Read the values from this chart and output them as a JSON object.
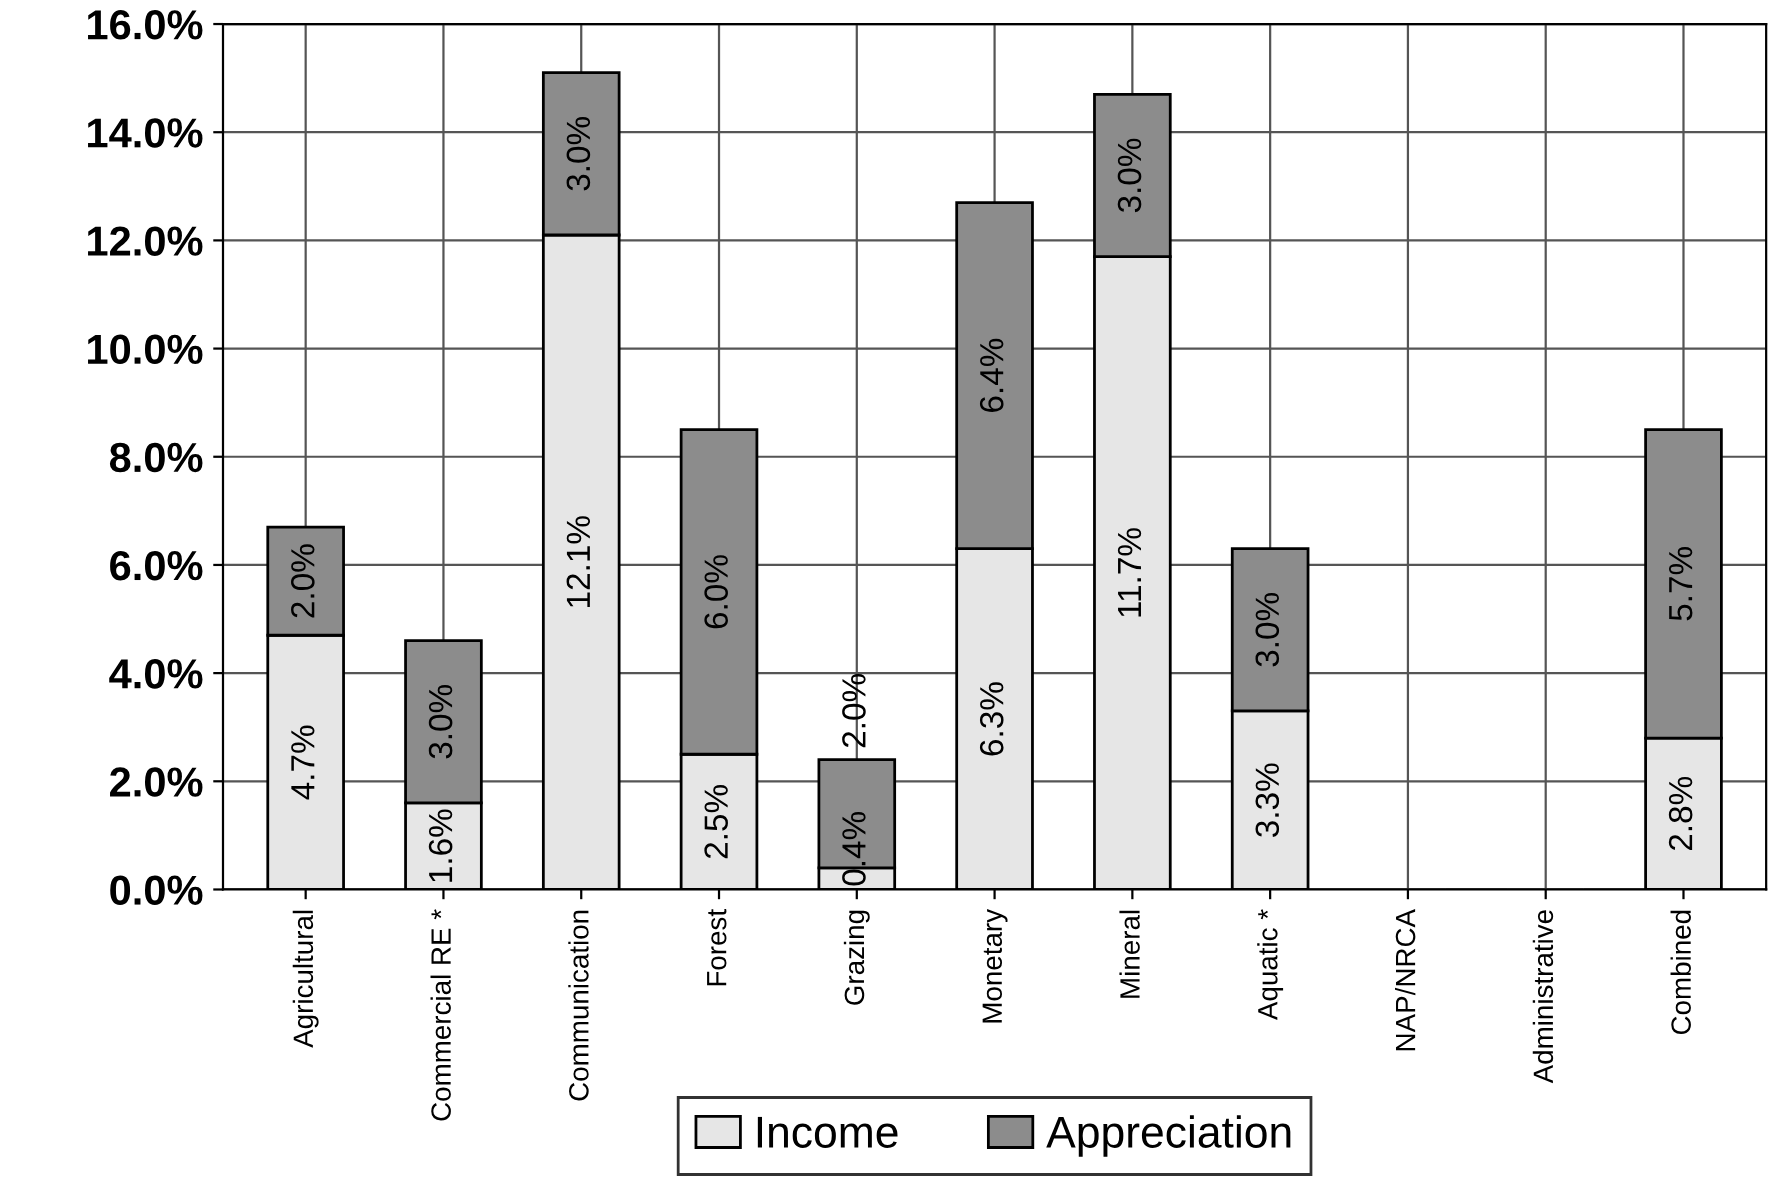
{
  "chart_data": {
    "type": "bar",
    "stacked": true,
    "categories": [
      "Agricultural",
      "Commercial RE *",
      "Communication",
      "Forest",
      "Grazing",
      "Monetary",
      "Mineral",
      "Aquatic *",
      "NAP/NRCA",
      "Administrative",
      "Combined"
    ],
    "series": [
      {
        "name": "Income",
        "color": "#e6e6e6",
        "values": [
          4.7,
          1.6,
          12.1,
          2.5,
          0.4,
          6.3,
          11.7,
          3.3,
          0,
          0,
          2.8
        ],
        "value_labels": [
          "4.7%",
          "1.6%",
          "12.1%",
          "2.5%",
          "0.4%",
          "6.3%",
          "11.7%",
          "3.3%",
          null,
          null,
          "2.8%"
        ]
      },
      {
        "name": "Appreciation",
        "color": "#8c8c8c",
        "values": [
          2.0,
          3.0,
          3.0,
          6.0,
          2.0,
          6.4,
          3.0,
          3.0,
          0,
          0,
          5.7
        ],
        "value_labels": [
          "2.0%",
          "3.0%",
          "3.0%",
          "6.0%",
          "2.0%",
          "6.4%",
          "3.0%",
          "3.0%",
          null,
          null,
          "5.7%"
        ]
      }
    ],
    "ylim": [
      0,
      16
    ],
    "yticks": [
      {
        "value": 0,
        "label": "0.0%"
      },
      {
        "value": 2,
        "label": "2.0%"
      },
      {
        "value": 4,
        "label": "4.0%"
      },
      {
        "value": 6,
        "label": "6.0%"
      },
      {
        "value": 8,
        "label": "8.0%"
      },
      {
        "value": 10,
        "label": "10.0%"
      },
      {
        "value": 12,
        "label": "12.0%"
      },
      {
        "value": 14,
        "label": "14.0%"
      },
      {
        "value": 16,
        "label": "16.0%"
      }
    ],
    "grid": true,
    "legend": "bottom"
  }
}
